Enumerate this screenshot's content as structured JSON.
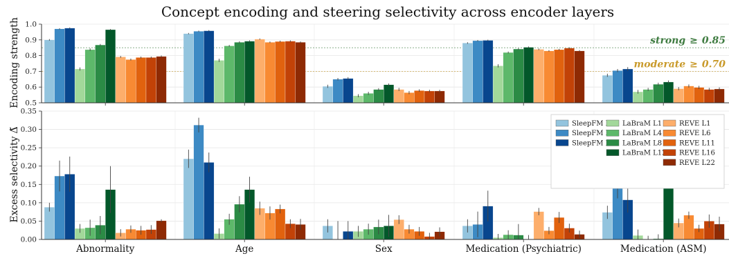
{
  "title": "Concept encoding and steering selectivity across encoder layers",
  "colors": {
    "SleepFM L1": "#93c4de",
    "SleepFM L2": "#3d8ac4",
    "SleepFM L3": "#08468e",
    "LaBraM L1": "#a2d89a",
    "LaBraM L4": "#5db86a",
    "LaBraM L8": "#2b8b45",
    "LaBraM L12": "#03582a",
    "REVE L1": "#fdae6b",
    "REVE L6": "#f88a33",
    "REVE L11": "#e1620e",
    "REVE L16": "#c24207",
    "REVE L22": "#8e2a04",
    "strong_threshold": "#3f7c41",
    "moderate_threshold": "#c99a2a"
  },
  "chart_data": [
    {
      "type": "bar",
      "panel": "top",
      "ylabel": "Encoding strength",
      "ylim": [
        0.5,
        1.0
      ],
      "yticks": [
        "0.5",
        "0.6",
        "0.7",
        "0.8",
        "0.9",
        "1.0"
      ],
      "categories": [
        "Abnormality",
        "Age",
        "Sex",
        "Medication (Psychiatric)",
        "Medication (ASM)"
      ],
      "thresholds": [
        {
          "label": "strong",
          "symbol": "≥",
          "value_label": "0.85",
          "value": 0.85,
          "color_key": "strong_threshold"
        },
        {
          "label": "moderate",
          "symbol": "≥",
          "value_label": "0.70",
          "value": 0.7,
          "color_key": "moderate_threshold"
        }
      ],
      "series": [
        {
          "name": "SleepFM L1",
          "values": [
            0.9,
            0.94,
            0.605,
            0.88,
            0.675
          ],
          "err": [
            0.005,
            0.004,
            0.01,
            0.005,
            0.01
          ]
        },
        {
          "name": "SleepFM L2",
          "values": [
            0.97,
            0.955,
            0.65,
            0.895,
            0.705
          ],
          "err": [
            0.004,
            0.004,
            0.008,
            0.004,
            0.01
          ]
        },
        {
          "name": "SleepFM L3",
          "values": [
            0.975,
            0.958,
            0.655,
            0.897,
            0.715
          ],
          "err": [
            0.004,
            0.004,
            0.008,
            0.004,
            0.012
          ]
        },
        {
          "name": "LaBraM L1",
          "values": [
            0.715,
            0.77,
            0.545,
            0.735,
            0.57
          ],
          "err": [
            0.01,
            0.01,
            0.01,
            0.01,
            0.012
          ]
        },
        {
          "name": "LaBraM L4",
          "values": [
            0.838,
            0.862,
            0.56,
            0.82,
            0.585
          ],
          "err": [
            0.008,
            0.006,
            0.01,
            0.006,
            0.01
          ]
        },
        {
          "name": "LaBraM L8",
          "values": [
            0.868,
            0.885,
            0.585,
            0.842,
            0.618
          ],
          "err": [
            0.006,
            0.006,
            0.008,
            0.005,
            0.01
          ]
        },
        {
          "name": "LaBraM L12",
          "values": [
            0.965,
            0.892,
            0.615,
            0.853,
            0.632
          ],
          "err": [
            0.004,
            0.005,
            0.008,
            0.005,
            0.01
          ]
        },
        {
          "name": "REVE L1",
          "values": [
            0.792,
            0.905,
            0.585,
            0.84,
            0.59
          ],
          "err": [
            0.006,
            0.004,
            0.01,
            0.005,
            0.01
          ]
        },
        {
          "name": "REVE L6",
          "values": [
            0.775,
            0.885,
            0.565,
            0.83,
            0.607
          ],
          "err": [
            0.006,
            0.005,
            0.01,
            0.005,
            0.01
          ]
        },
        {
          "name": "REVE L11",
          "values": [
            0.788,
            0.89,
            0.578,
            0.838,
            0.598
          ],
          "err": [
            0.006,
            0.005,
            0.008,
            0.005,
            0.01
          ]
        },
        {
          "name": "REVE L16",
          "values": [
            0.788,
            0.892,
            0.575,
            0.848,
            0.585
          ],
          "err": [
            0.006,
            0.005,
            0.008,
            0.005,
            0.01
          ]
        },
        {
          "name": "REVE L22",
          "values": [
            0.795,
            0.885,
            0.575,
            0.83,
            0.588
          ],
          "err": [
            0.006,
            0.005,
            0.008,
            0.005,
            0.01
          ]
        }
      ]
    },
    {
      "type": "bar",
      "panel": "bottom",
      "ylabel": "Excess selectivity",
      "ylabel_symbol": "Δ̃",
      "ylim": [
        0.0,
        0.35
      ],
      "yticks": [
        "0.00",
        "0.05",
        "0.10",
        "0.15",
        "0.20",
        "0.25",
        "0.30",
        "0.35"
      ],
      "categories": [
        "Abnormality",
        "Age",
        "Sex",
        "Medication (Psychiatric)",
        "Medication (ASM)"
      ],
      "legend": "top-right",
      "series": [
        {
          "name": "SleepFM L1",
          "values": [
            0.088,
            0.22,
            0.037,
            0.037,
            0.074
          ],
          "err": [
            0.012,
            0.025,
            0.018,
            0.018,
            0.018
          ]
        },
        {
          "name": "SleepFM L2",
          "values": [
            0.173,
            0.312,
            0.0,
            0.041,
            0.152
          ],
          "err": [
            0.042,
            0.02,
            0.05,
            0.035,
            0.04
          ]
        },
        {
          "name": "SleepFM L3",
          "values": [
            0.178,
            0.21,
            0.022,
            0.091,
            0.108
          ],
          "err": [
            0.048,
            0.027,
            0.028,
            0.042,
            0.035
          ]
        },
        {
          "name": "LaBraM L1",
          "values": [
            0.03,
            0.016,
            0.022,
            0.005,
            0.011
          ],
          "err": [
            0.012,
            0.014,
            0.015,
            0.01,
            0.016
          ]
        },
        {
          "name": "LaBraM L4",
          "values": [
            0.032,
            0.055,
            0.028,
            0.013,
            0.0
          ],
          "err": [
            0.022,
            0.015,
            0.015,
            0.012,
            0.01
          ]
        },
        {
          "name": "LaBraM L8",
          "values": [
            0.039,
            0.096,
            0.034,
            0.012,
            0.002
          ],
          "err": [
            0.025,
            0.022,
            0.02,
            0.03,
            0.012
          ]
        },
        {
          "name": "LaBraM L12",
          "values": [
            0.136,
            0.136,
            0.037,
            0.0,
            0.176
          ],
          "err": [
            0.064,
            0.035,
            0.03,
            0.012,
            0.02
          ]
        },
        {
          "name": "REVE L1",
          "values": [
            0.018,
            0.085,
            0.054,
            0.076,
            0.045
          ],
          "err": [
            0.01,
            0.018,
            0.012,
            0.01,
            0.012
          ]
        },
        {
          "name": "REVE L6",
          "values": [
            0.028,
            0.072,
            0.028,
            0.024,
            0.066
          ],
          "err": [
            0.01,
            0.018,
            0.012,
            0.01,
            0.01
          ]
        },
        {
          "name": "REVE L11",
          "values": [
            0.025,
            0.083,
            0.022,
            0.06,
            0.03
          ],
          "err": [
            0.012,
            0.012,
            0.012,
            0.015,
            0.01
          ]
        },
        {
          "name": "REVE L16",
          "values": [
            0.027,
            0.043,
            0.008,
            0.031,
            0.05
          ],
          "err": [
            0.012,
            0.012,
            0.01,
            0.012,
            0.018
          ]
        },
        {
          "name": "REVE L22",
          "values": [
            0.051,
            0.041,
            0.021,
            0.014,
            0.042
          ],
          "err": [
            0.004,
            0.015,
            0.012,
            0.01,
            0.02
          ]
        }
      ]
    }
  ]
}
